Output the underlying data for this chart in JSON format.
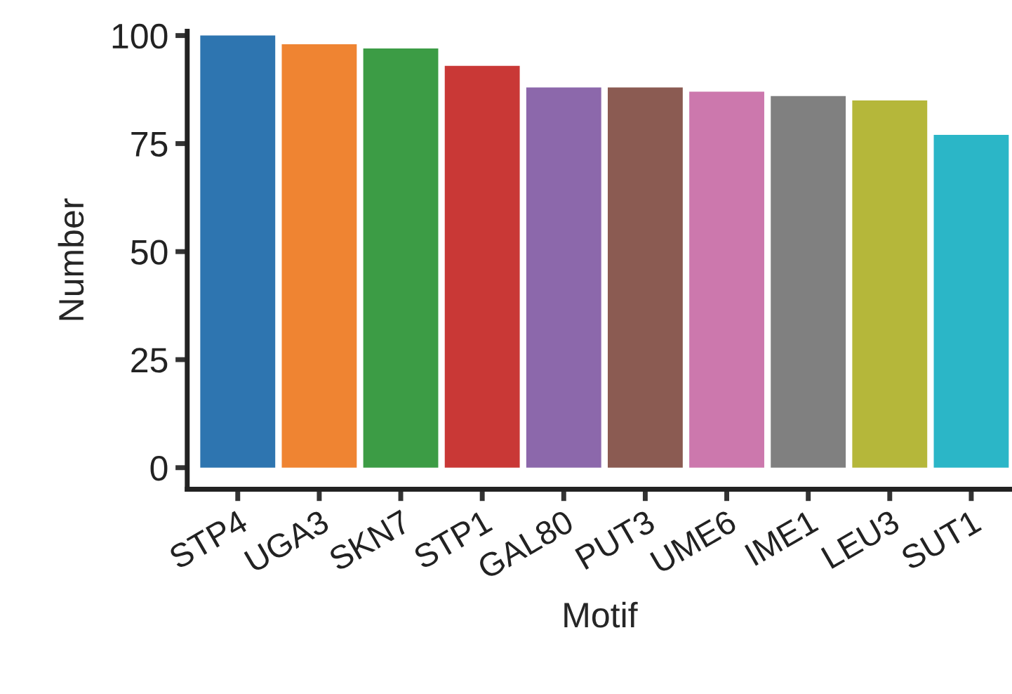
{
  "chart_data": {
    "type": "bar",
    "xlabel": "Motif",
    "ylabel": "Number",
    "categories": [
      "STP4",
      "UGA3",
      "SKN7",
      "STP1",
      "GAL80",
      "PUT3",
      "UME6",
      "IME1",
      "LEU3",
      "SUT1"
    ],
    "values": [
      100,
      98,
      97,
      93,
      88,
      88,
      87,
      86,
      85,
      77
    ],
    "colors": [
      "#2e75b0",
      "#ef8432",
      "#3c9c45",
      "#c93836",
      "#8c68ab",
      "#8b5b52",
      "#cc78ad",
      "#808080",
      "#b5b73a",
      "#2bb6c7"
    ],
    "ylim": [
      -5,
      101
    ],
    "yticks": [
      0,
      25,
      50,
      75,
      100
    ],
    "grid": false,
    "legend": false
  }
}
